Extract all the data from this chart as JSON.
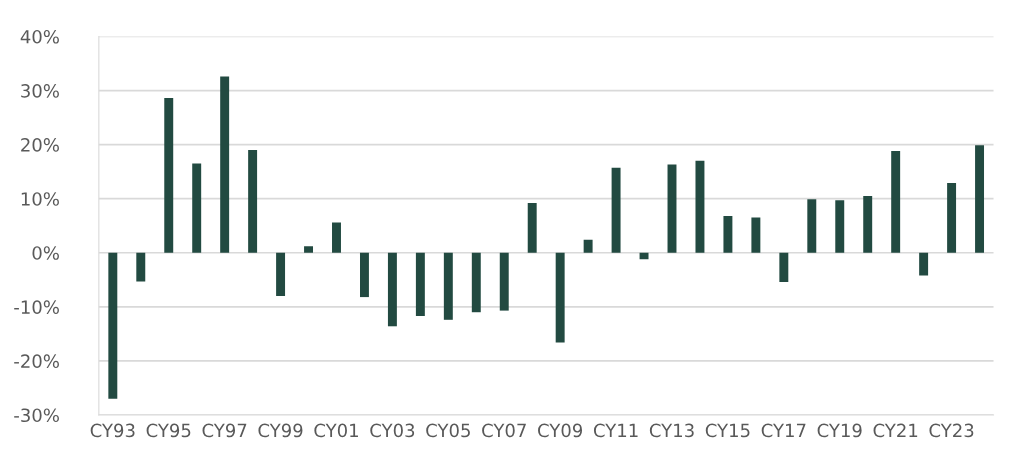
{
  "chart_data": {
    "type": "bar",
    "categories": [
      "CY93",
      null,
      "CY95",
      null,
      "CY97",
      null,
      "CY99",
      null,
      "CY01",
      null,
      "CY03",
      null,
      "CY05",
      null,
      "CY07",
      null,
      "CY09",
      null,
      "CY11",
      null,
      "CY13",
      null,
      "CY15",
      null,
      "CY17",
      null,
      "CY19",
      null,
      "CY21",
      null,
      "CY23",
      null
    ],
    "values": [
      -27.0,
      -5.3,
      28.6,
      16.5,
      32.6,
      19.0,
      -8.0,
      1.2,
      5.6,
      -8.2,
      -13.6,
      -11.7,
      -12.4,
      -11.0,
      -10.7,
      9.2,
      -16.6,
      2.4,
      15.7,
      -1.2,
      16.3,
      17.0,
      6.8,
      6.5,
      -5.4,
      9.9,
      9.7,
      10.5,
      18.8,
      -4.2,
      12.9,
      19.9
    ],
    "color": "#224a41",
    "ylim": [
      -30,
      40
    ],
    "yticks": [
      {
        "value": -30,
        "label": "-30%"
      },
      {
        "value": -20,
        "label": "-20%"
      },
      {
        "value": -10,
        "label": "-10%"
      },
      {
        "value": 0,
        "label": "0%"
      },
      {
        "value": 10,
        "label": "10%"
      },
      {
        "value": 20,
        "label": "20%"
      },
      {
        "value": 30,
        "label": "30%"
      },
      {
        "value": 40,
        "label": "40%"
      }
    ],
    "grid": "y"
  }
}
